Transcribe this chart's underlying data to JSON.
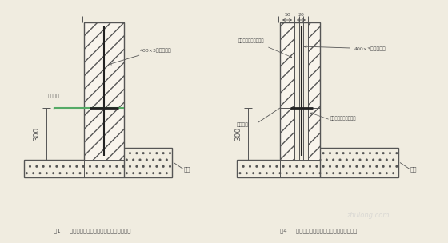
{
  "bg_color": "#f0ece0",
  "line_color": "#555555",
  "green_color": "#55aa66",
  "fig1_caption": "图1     地下室外墙水平施工缝钢板止水带大样图",
  "fig4_caption": "图4     地下室外墙水平施工缝钢板止水带大样图",
  "label_400x3_1": "400×3钢板止水带",
  "label_400x3_2": "400×3厚钢止水带",
  "label_jishi1": "基础垫层",
  "label_jishi2": "基础垫层",
  "label_dizhan": "底板",
  "label_dizhan2": "底板",
  "label_guding1": "固定止水钢板预埋止器",
  "label_guding2": "固定止水钢板埋设钢筋",
  "dim_300": "300",
  "dim_50": "50",
  "dim_20": "20"
}
